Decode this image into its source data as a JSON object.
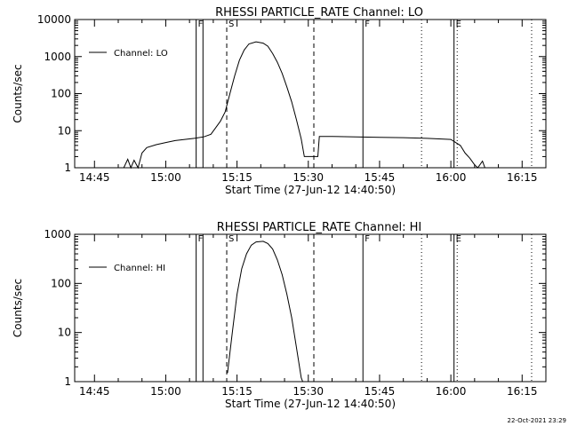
{
  "chart_data": [
    {
      "type": "line",
      "title": "RHESSI PARTICLE_RATE Channel: LO",
      "xlabel": "Start Time (27-Jun-12 14:40:50)",
      "ylabel": "Counts/sec",
      "yscale": "log",
      "ylim": [
        1,
        10000
      ],
      "xlim": [
        "14:40:50",
        "16:20:00"
      ],
      "xticks": [
        "14:45",
        "15:00",
        "15:15",
        "15:30",
        "15:45",
        "16:00",
        "16:15"
      ],
      "yticks": [
        "1",
        "10",
        "100",
        "1000",
        "10000"
      ],
      "legend": {
        "label": "Channel: LO",
        "position": "top-left"
      },
      "markers": [
        {
          "label": "F",
          "time": "15:06:24",
          "style": "solid"
        },
        {
          "label": "",
          "time": "15:07:50",
          "style": "solid"
        },
        {
          "label": "S",
          "time": "15:12:50",
          "style": "dashed"
        },
        {
          "label": "",
          "time": "15:31:10",
          "style": "dashed"
        },
        {
          "label": "F",
          "time": "15:41:30",
          "style": "solid"
        },
        {
          "label": "E",
          "time": "16:00:40",
          "style": "solid"
        },
        {
          "label": "",
          "time": "15:53:50",
          "style": "dotted"
        },
        {
          "label": "",
          "time": "16:01:20",
          "style": "dotted"
        },
        {
          "label": "",
          "time": "16:17:00",
          "style": "dotted"
        }
      ],
      "series": [
        {
          "values": [
            [
              "14:51:10",
              1
            ],
            [
              "14:52:00",
              1.7
            ],
            [
              "14:52:40",
              1
            ],
            [
              "14:53:20",
              1.6
            ],
            [
              "14:54:10",
              1
            ],
            [
              "14:55:00",
              2.5
            ],
            [
              "14:56:00",
              3.5
            ],
            [
              "14:58:00",
              4.2
            ],
            [
              "15:00:00",
              4.8
            ],
            [
              "15:02:00",
              5.4
            ],
            [
              "15:04:00",
              5.8
            ],
            [
              "15:06:00",
              6.2
            ],
            [
              "15:08:00",
              6.8
            ],
            [
              "15:09:30",
              8
            ],
            [
              "15:10:30",
              12
            ],
            [
              "15:11:30",
              18
            ],
            [
              "15:12:30",
              32
            ],
            [
              "15:13:30",
              100
            ],
            [
              "15:14:30",
              300
            ],
            [
              "15:15:30",
              800
            ],
            [
              "15:16:30",
              1500
            ],
            [
              "15:17:30",
              2200
            ],
            [
              "15:19:00",
              2500
            ],
            [
              "15:20:30",
              2300
            ],
            [
              "15:21:30",
              1900
            ],
            [
              "15:22:30",
              1200
            ],
            [
              "15:23:30",
              700
            ],
            [
              "15:24:30",
              350
            ],
            [
              "15:25:30",
              150
            ],
            [
              "15:26:30",
              60
            ],
            [
              "15:27:30",
              20
            ],
            [
              "15:28:30",
              6
            ],
            [
              "15:29:10",
              2
            ],
            [
              "15:30:00",
              2
            ],
            [
              "15:31:00",
              2
            ],
            [
              "15:32:00",
              2
            ],
            [
              "15:32:20",
              7
            ],
            [
              "15:35:00",
              7
            ],
            [
              "15:40:00",
              6.8
            ],
            [
              "15:45:00",
              6.6
            ],
            [
              "15:50:00",
              6.5
            ],
            [
              "15:55:00",
              6.2
            ],
            [
              "16:00:00",
              5.8
            ],
            [
              "16:02:00",
              4
            ],
            [
              "16:03:00",
              2.5
            ],
            [
              "16:04:00",
              1.8
            ],
            [
              "16:05:00",
              1.2
            ],
            [
              "16:05:40",
              1
            ],
            [
              "16:06:40",
              1.5
            ],
            [
              "16:07:10",
              1
            ]
          ]
        }
      ]
    },
    {
      "type": "line",
      "title": "RHESSI PARTICLE_RATE Channel: HI",
      "xlabel": "Start Time (27-Jun-12 14:40:50)",
      "ylabel": "Counts/sec",
      "yscale": "log",
      "ylim": [
        1,
        1000
      ],
      "xlim": [
        "14:40:50",
        "16:20:00"
      ],
      "xticks": [
        "14:45",
        "15:00",
        "15:15",
        "15:30",
        "15:45",
        "16:00",
        "16:15"
      ],
      "yticks": [
        "1",
        "10",
        "100",
        "1000"
      ],
      "legend": {
        "label": "Channel: HI",
        "position": "top-left"
      },
      "markers": [
        {
          "label": "F",
          "time": "15:06:24",
          "style": "solid"
        },
        {
          "label": "",
          "time": "15:07:50",
          "style": "solid"
        },
        {
          "label": "S",
          "time": "15:12:50",
          "style": "dashed"
        },
        {
          "label": "",
          "time": "15:31:10",
          "style": "dashed"
        },
        {
          "label": "F",
          "time": "15:41:30",
          "style": "solid"
        },
        {
          "label": "E",
          "time": "16:00:40",
          "style": "solid"
        },
        {
          "label": "",
          "time": "15:53:50",
          "style": "dotted"
        },
        {
          "label": "",
          "time": "16:01:20",
          "style": "dotted"
        },
        {
          "label": "",
          "time": "16:17:00",
          "style": "dotted"
        }
      ],
      "series": [
        {
          "values": [
            [
              "15:13:00",
              1.5
            ],
            [
              "15:14:00",
              10
            ],
            [
              "15:15:00",
              60
            ],
            [
              "15:16:00",
              200
            ],
            [
              "15:17:00",
              400
            ],
            [
              "15:18:00",
              600
            ],
            [
              "15:19:00",
              700
            ],
            [
              "15:20:30",
              720
            ],
            [
              "15:21:30",
              650
            ],
            [
              "15:22:30",
              500
            ],
            [
              "15:23:30",
              300
            ],
            [
              "15:24:30",
              150
            ],
            [
              "15:25:30",
              60
            ],
            [
              "15:26:30",
              20
            ],
            [
              "15:27:30",
              5
            ],
            [
              "15:28:30",
              1.2
            ],
            [
              "15:28:50",
              1
            ]
          ]
        }
      ]
    }
  ],
  "footer": {
    "timestamp": "22-Oct-2021 23:29"
  }
}
